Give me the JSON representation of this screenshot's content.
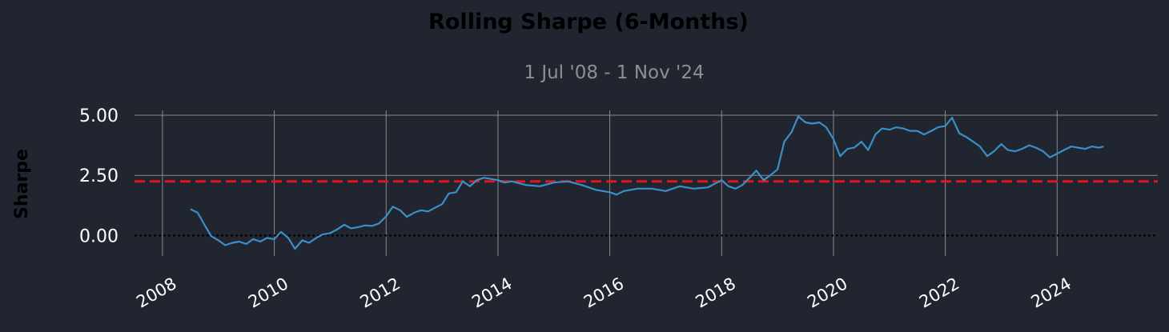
{
  "chart_data": {
    "type": "line",
    "title": "Rolling Sharpe (6-Months)",
    "subtitle": "1 Jul '08 -  1 Nov '24",
    "xlabel": "",
    "ylabel": "Sharpe",
    "x_ticks": [
      "2008",
      "2010",
      "2012",
      "2014",
      "2016",
      "2018",
      "2020",
      "2022",
      "2024"
    ],
    "y_ticks": [
      "0.00",
      "2.50",
      "5.00"
    ],
    "y_tick_values": [
      0,
      2.5,
      5.0
    ],
    "xlim": [
      2007.5,
      2025.8
    ],
    "ylim": [
      -0.85,
      5.2
    ],
    "grid": true,
    "colors": {
      "background": "#212530",
      "line": "#3a8fc7",
      "mean_line": "#e3141c",
      "zero_line": "#000000",
      "grid": "#8a8a8a"
    },
    "mean_value": 2.25,
    "zero_value": 0,
    "series": [
      {
        "x": [
          2008.5,
          2008.63,
          2008.75,
          2008.87,
          2009.0,
          2009.12,
          2009.25,
          2009.37,
          2009.5,
          2009.62,
          2009.75,
          2009.87,
          2010.0,
          2010.12,
          2010.25,
          2010.37,
          2010.5,
          2010.62,
          2010.75,
          2010.87,
          2011.0,
          2011.12,
          2011.25,
          2011.37,
          2011.5,
          2011.62,
          2011.75,
          2011.87,
          2012.0,
          2012.12,
          2012.25,
          2012.37,
          2012.5,
          2012.62,
          2012.75,
          2012.87,
          2013.0,
          2013.12,
          2013.25,
          2013.37,
          2013.5,
          2013.62,
          2013.75,
          2013.87,
          2014.0,
          2014.12,
          2014.25,
          2014.5,
          2014.75,
          2015.0,
          2015.25,
          2015.5,
          2015.75,
          2016.0,
          2016.12,
          2016.25,
          2016.5,
          2016.75,
          2017.0,
          2017.25,
          2017.5,
          2017.75,
          2018.0,
          2018.12,
          2018.25,
          2018.37,
          2018.5,
          2018.62,
          2018.75,
          2018.87,
          2019.0,
          2019.12,
          2019.25,
          2019.37,
          2019.5,
          2019.62,
          2019.75,
          2019.87,
          2020.0,
          2020.12,
          2020.25,
          2020.37,
          2020.5,
          2020.62,
          2020.75,
          2020.87,
          2021.0,
          2021.12,
          2021.25,
          2021.37,
          2021.5,
          2021.62,
          2021.75,
          2021.87,
          2022.0,
          2022.12,
          2022.25,
          2022.37,
          2022.5,
          2022.62,
          2022.75,
          2022.87,
          2023.0,
          2023.12,
          2023.25,
          2023.37,
          2023.5,
          2023.62,
          2023.75,
          2023.87,
          2024.0,
          2024.12,
          2024.25,
          2024.37,
          2024.5,
          2024.62,
          2024.75,
          2024.83
        ],
        "y": [
          1.1,
          0.95,
          0.45,
          -0.02,
          -0.2,
          -0.4,
          -0.3,
          -0.25,
          -0.35,
          -0.15,
          -0.25,
          -0.1,
          -0.15,
          0.15,
          -0.1,
          -0.55,
          -0.2,
          -0.3,
          -0.1,
          0.05,
          0.1,
          0.25,
          0.45,
          0.3,
          0.35,
          0.42,
          0.4,
          0.5,
          0.8,
          1.2,
          1.05,
          0.78,
          0.95,
          1.05,
          1.0,
          1.15,
          1.3,
          1.75,
          1.8,
          2.25,
          2.05,
          2.3,
          2.4,
          2.35,
          2.3,
          2.2,
          2.25,
          2.1,
          2.05,
          2.2,
          2.25,
          2.1,
          1.9,
          1.8,
          1.7,
          1.85,
          1.95,
          1.95,
          1.85,
          2.05,
          1.95,
          2.0,
          2.3,
          2.05,
          1.95,
          2.1,
          2.4,
          2.7,
          2.3,
          2.5,
          2.75,
          3.9,
          4.3,
          4.95,
          4.7,
          4.65,
          4.7,
          4.5,
          4.0,
          3.3,
          3.6,
          3.65,
          3.9,
          3.55,
          4.2,
          4.45,
          4.4,
          4.5,
          4.45,
          4.35,
          4.35,
          4.2,
          4.35,
          4.5,
          4.55,
          4.9,
          4.25,
          4.1,
          3.9,
          3.7,
          3.3,
          3.5,
          3.8,
          3.55,
          3.5,
          3.6,
          3.75,
          3.65,
          3.5,
          3.25,
          3.4,
          3.55,
          3.7,
          3.65,
          3.6,
          3.7,
          3.65,
          3.7
        ]
      }
    ]
  }
}
